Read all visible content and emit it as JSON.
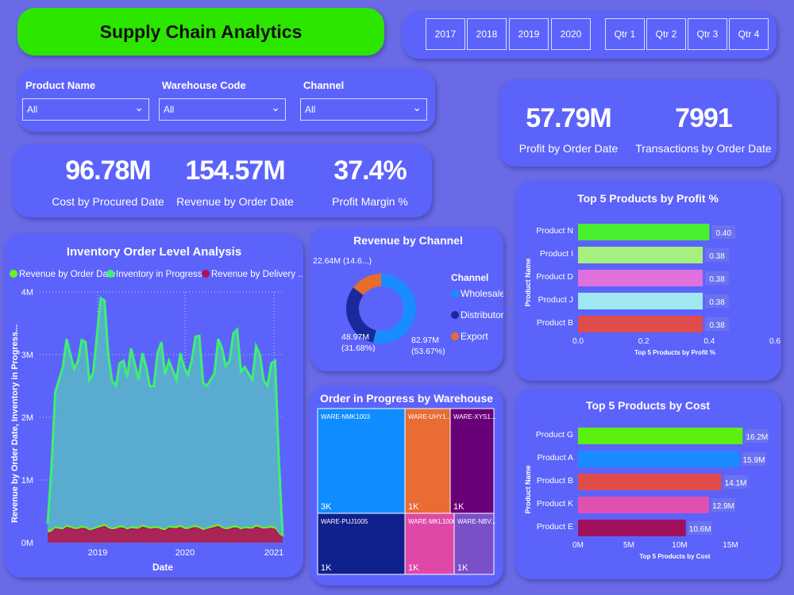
{
  "header": {
    "title": "Supply Chain Analytics"
  },
  "years": [
    "2017",
    "2018",
    "2019",
    "2020"
  ],
  "quarters": [
    "Qtr 1",
    "Qtr 2",
    "Qtr 3",
    "Qtr 4"
  ],
  "filters": [
    {
      "label": "Product Name",
      "value": "All"
    },
    {
      "label": "Warehouse Code",
      "value": "All"
    },
    {
      "label": "Channel",
      "value": "All"
    }
  ],
  "kpis_left": [
    {
      "value": "96.78M",
      "label": "Cost by Procured Date"
    },
    {
      "value": "154.57M",
      "label": "Revenue by Order Date"
    },
    {
      "value": "37.4%",
      "label": "Profit Margin %"
    }
  ],
  "kpis_right": [
    {
      "value": "57.79M",
      "label": "Profit by Order Date"
    },
    {
      "value": "7991",
      "label": "Transactions by Order Date"
    }
  ],
  "colors": {
    "background": "#6a6ae6",
    "panel": "#5c63fb",
    "title_bg": "#2ce600"
  },
  "chart_data": [
    {
      "type": "area",
      "title": "Inventory Order Level Analysis",
      "xlabel": "Date",
      "ylabel": "Revenue by Order Date, Inventory in Progress...",
      "yticks": [
        "0M",
        "1M",
        "2M",
        "3M",
        "4M"
      ],
      "ylim": [
        0,
        4000000
      ],
      "xticks": [
        "2019",
        "2020",
        "2021"
      ],
      "x": [
        "2018-06",
        "2018-07",
        "2018-08",
        "2018-09",
        "2018-10",
        "2018-11",
        "2018-12",
        "2019-01",
        "2019-02",
        "2019-03",
        "2019-04",
        "2019-05",
        "2019-06",
        "2019-07",
        "2019-08",
        "2019-09",
        "2019-10",
        "2019-11",
        "2019-12",
        "2020-01",
        "2020-02",
        "2020-03",
        "2020-04",
        "2020-05",
        "2020-06",
        "2020-07",
        "2020-08",
        "2020-09",
        "2020-10",
        "2020-11",
        "2020-12",
        "2021-01"
      ],
      "series": [
        {
          "name": "Revenue by Order Date",
          "color": "#6cf020",
          "values": [
            200000,
            250000,
            230000,
            260000,
            240000,
            250000,
            230000,
            270000,
            250000,
            240000,
            260000,
            250000,
            240000,
            260000,
            250000,
            230000,
            260000,
            250000,
            240000,
            260000,
            250000,
            240000,
            270000,
            250000,
            240000,
            260000,
            250000,
            240000,
            260000,
            250000,
            240000,
            100000
          ]
        },
        {
          "name": "Inventory in Progress",
          "color": "#3ef070",
          "values": [
            300000,
            2400000,
            2800000,
            3000000,
            2900000,
            3200000,
            2700000,
            3900000,
            3000000,
            2500000,
            2900000,
            3100000,
            2600000,
            2800000,
            2500000,
            3200000,
            2900000,
            2600000,
            2800000,
            2900000,
            3300000,
            2500000,
            2700000,
            3100000,
            2900000,
            3400000,
            2800000,
            2600000,
            3000000,
            2500000,
            2900000,
            100000
          ]
        },
        {
          "name": "Revenue by Delivery ...",
          "color": "#b0105c",
          "values": [
            150000,
            220000,
            200000,
            230000,
            210000,
            220000,
            200000,
            240000,
            220000,
            210000,
            230000,
            220000,
            210000,
            230000,
            220000,
            200000,
            230000,
            220000,
            210000,
            230000,
            220000,
            210000,
            240000,
            220000,
            210000,
            230000,
            220000,
            210000,
            230000,
            220000,
            210000,
            80000
          ]
        }
      ]
    },
    {
      "type": "pie",
      "title": "Revenue by Channel",
      "legend_title": "Channel",
      "categories": [
        "Wholesale",
        "Distributor",
        "Export"
      ],
      "values": [
        82.97,
        48.97,
        22.64
      ],
      "labels": [
        "82.97M (53.67%)",
        "48.97M (31.68%)",
        "22.64M (14.6...)"
      ],
      "colors": [
        "#1a8cff",
        "#1a2a9c",
        "#e86c2c"
      ]
    },
    {
      "type": "treemap",
      "title": "Order in Progress by Warehouse",
      "categories": [
        "WARE-NMK1003",
        "WARE-UHY1...",
        "WARE-XYS1...",
        "WARE-PUJ1005",
        "WARE-MKL1006",
        "WARE-NBV..."
      ],
      "labels": [
        "3K",
        "1K",
        "1K",
        "1K",
        "1K",
        "1K"
      ],
      "colors": [
        "#0f8cff",
        "#e86c34",
        "#6a0078",
        "#10208c",
        "#e048a8",
        "#7a50c8"
      ]
    },
    {
      "type": "bar",
      "title": "Top 5 Products by Profit %",
      "xlabel": "Top 5 Products by Profit %",
      "ylabel": "Product Name",
      "categories": [
        "Product N",
        "Product I",
        "Product D",
        "Product J",
        "Product B"
      ],
      "values": [
        0.4,
        0.38,
        0.38,
        0.38,
        0.38
      ],
      "labels": [
        "0.40",
        "0.38",
        "0.38",
        "0.38",
        "0.38"
      ],
      "xticks": [
        "0.0",
        "0.2",
        "0.4",
        "0.6"
      ],
      "xlim": [
        0,
        0.6
      ],
      "colors": [
        "#48f030",
        "#a6f080",
        "#e070dc",
        "#a0e8f0",
        "#e04c4c"
      ]
    },
    {
      "type": "bar",
      "title": "Top 5 Products by Cost",
      "xlabel": "Top 5 Products by Cost",
      "ylabel": "Product Name",
      "categories": [
        "Product G",
        "Product A",
        "Product B",
        "Product K",
        "Product E"
      ],
      "values": [
        16.2,
        15.9,
        14.1,
        12.9,
        10.6
      ],
      "labels": [
        "16.2M",
        "15.9M",
        "14.1M",
        "12.9M",
        "10.6M"
      ],
      "xticks": [
        "0M",
        "5M",
        "10M",
        "15M"
      ],
      "xlim": [
        0,
        20
      ],
      "colors": [
        "#5cf010",
        "#1a8cff",
        "#e04c4c",
        "#e050b0",
        "#a0105c"
      ]
    }
  ]
}
